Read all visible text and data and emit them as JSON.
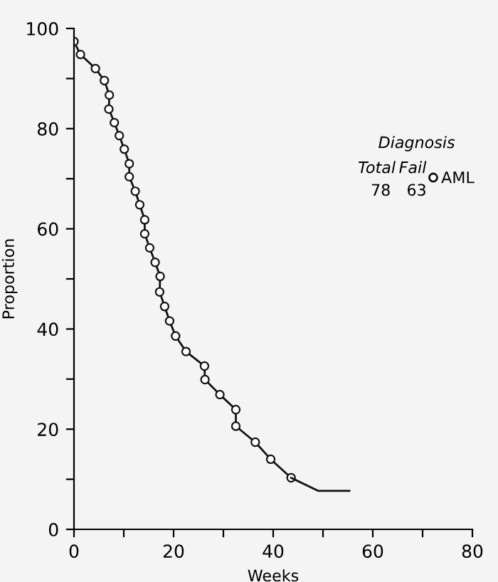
{
  "chart_data": {
    "type": "line",
    "xlabel": "Weeks",
    "ylabel": "Proportion",
    "xlim": [
      0,
      80
    ],
    "ylim": [
      0,
      100
    ],
    "xticks": [
      0,
      {
        "value": 10,
        "label": null
      },
      20,
      {
        "value": 30,
        "label": null
      },
      40,
      {
        "value": 50,
        "label": null
      },
      60,
      {
        "value": 70,
        "label": null
      },
      80
    ],
    "yticks": [
      0,
      {
        "value": 10,
        "label": null
      },
      20,
      {
        "value": 30,
        "label": null
      },
      40,
      {
        "value": 50,
        "label": null
      },
      60,
      {
        "value": 70,
        "label": null
      },
      80,
      {
        "value": 90,
        "label": null
      },
      100
    ],
    "grid": false,
    "legend": "top right",
    "line_style": "solid",
    "annotations": [
      "Diagnosis",
      "Total",
      "Fail",
      "78",
      "63"
    ],
    "series": [
      {
        "name": "AML",
        "color": "#111111",
        "marker": "circle",
        "x": [
          0,
          1.3,
          4.3,
          6.1,
          7.1,
          7.0,
          8.1,
          9.1,
          10.1,
          11.1,
          11.1,
          12.3,
          13.2,
          14.2,
          14.2,
          15.2,
          16.3,
          17.3,
          17.2,
          18.2,
          19.2,
          20.4,
          22.5,
          26.2,
          26.3,
          29.3,
          32.5,
          32.5,
          36.4,
          39.5,
          43.6
        ],
        "values": [
          97.4,
          94.8,
          92,
          89.6,
          86.7,
          83.9,
          81.2,
          78.6,
          75.9,
          73,
          70.4,
          67.5,
          64.8,
          61.8,
          59,
          56.2,
          53.3,
          50.5,
          47.4,
          44.5,
          41.6,
          38.6,
          35.5,
          32.6,
          29.9,
          26.9,
          23.9,
          20.6,
          17.4,
          14,
          10.3
        ]
      },
      {
        "color": "#111111",
        "marker": "none",
        "x": [
          43.6,
          49,
          55.3
        ],
        "values": [
          10.3,
          7.7,
          7.7
        ]
      }
    ]
  }
}
